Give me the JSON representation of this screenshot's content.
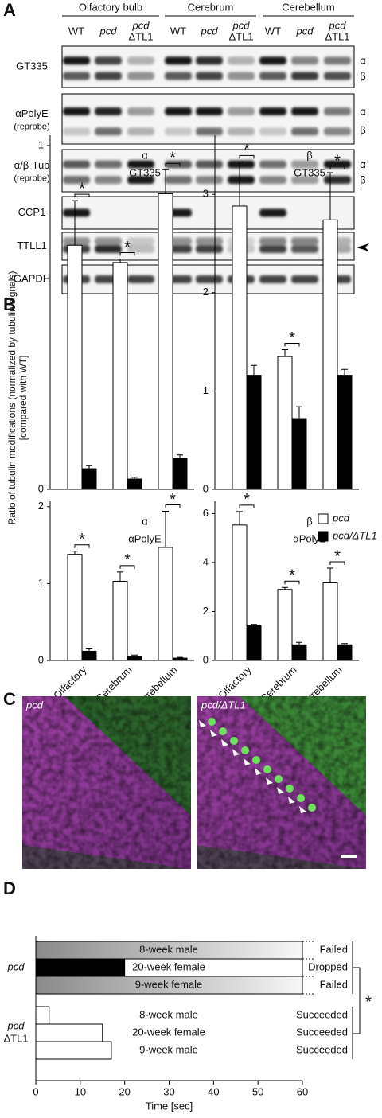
{
  "panel_a": {
    "label": "A",
    "groups": [
      "Olfactory bulb",
      "Cerebrum",
      "Cerebellum"
    ],
    "lanes": [
      [
        "WT"
      ],
      [
        "pcd"
      ],
      [
        "pcd",
        "ΔTL1"
      ],
      [
        "WT"
      ],
      [
        "pcd"
      ],
      [
        "pcd",
        "ΔTL1"
      ],
      [
        "WT"
      ],
      [
        "pcd"
      ],
      [
        "pcd",
        "ΔTL1"
      ]
    ],
    "blots": [
      {
        "label": [
          "GT335"
        ],
        "markers": [
          "α",
          "β"
        ]
      },
      {
        "label": [
          "αPolyE",
          "(reprobe)"
        ],
        "markers": [
          "α",
          "β"
        ]
      },
      {
        "label": [
          "α/β-Tub",
          "(reprobe)"
        ],
        "markers": [
          "α",
          "β"
        ]
      },
      {
        "label": [
          "CCP1"
        ]
      },
      {
        "label": [
          "TTLL1"
        ]
      },
      {
        "label": [
          "GAPDH"
        ]
      }
    ]
  },
  "panel_b": {
    "label": "B",
    "ylabel": [
      "Ratio of tubulin modifications (normalized by tubulin signals)",
      "[compared with WT]"
    ]
  },
  "panel_c": {
    "label": "C",
    "images": [
      {
        "label": "pcd"
      },
      {
        "label": "pcd/ΔTL1"
      }
    ]
  },
  "panel_d": {
    "label": "D"
  },
  "chart_data": [
    {
      "type": "bar",
      "title": [
        "α",
        "GT335"
      ],
      "categories": [
        null,
        null,
        null
      ],
      "series": [
        {
          "color": "#ffffff",
          "values": [
            0.71,
            0.66,
            0.86
          ],
          "errors": [
            0.13,
            0.01,
            0.07
          ]
        },
        {
          "color": "#000000",
          "values": [
            0.06,
            0.03,
            0.09
          ],
          "errors": [
            0.01,
            0.005,
            0.01
          ]
        }
      ],
      "ylim": [
        0,
        1.03
      ],
      "yticks": [
        0,
        1
      ],
      "annotations": [
        "*",
        "*",
        "*"
      ]
    },
    {
      "type": "bar",
      "title": [
        "β",
        "GT335"
      ],
      "categories": [
        null,
        null,
        null
      ],
      "series": [
        {
          "color": "#ffffff",
          "values": [
            2.88,
            1.35,
            2.74
          ],
          "errors": [
            0.45,
            0.07,
            0.48
          ]
        },
        {
          "color": "#000000",
          "values": [
            1.16,
            0.72,
            1.16
          ],
          "errors": [
            0.1,
            0.12,
            0.06
          ]
        }
      ],
      "ylim": [
        0,
        3.6
      ],
      "yticks": [
        0,
        1,
        2,
        3
      ],
      "annotations": [
        "*",
        "*",
        "*"
      ]
    },
    {
      "type": "bar",
      "title": [
        "α",
        "αPolyE"
      ],
      "categories": [
        "Olfactory",
        "Cerebrum",
        "Cerebellum"
      ],
      "series": [
        {
          "color": "#ffffff",
          "values": [
            1.38,
            1.03,
            1.47
          ],
          "errors": [
            0.04,
            0.12,
            0.47
          ]
        },
        {
          "color": "#000000",
          "values": [
            0.12,
            0.05,
            0.03
          ],
          "errors": [
            0.04,
            0.02,
            0.01
          ]
        }
      ],
      "ylim": [
        0,
        2.07
      ],
      "yticks": [
        0,
        1,
        2
      ],
      "annotations": [
        "*",
        "*",
        "*"
      ]
    },
    {
      "type": "bar",
      "title": [
        "β",
        "αPolyE"
      ],
      "categories": [
        "Olfactory",
        "Cerebrum",
        "Cerebellum"
      ],
      "series": [
        {
          "name": "pcd",
          "color": "#ffffff",
          "values": [
            5.53,
            2.9,
            3.17
          ],
          "errors": [
            0.55,
            0.08,
            0.6
          ]
        },
        {
          "name": "pcd/ΔTL1",
          "color": "#000000",
          "values": [
            1.42,
            0.64,
            0.64
          ],
          "errors": [
            0.05,
            0.1,
            0.05
          ]
        }
      ],
      "ylim": [
        0,
        6.5
      ],
      "yticks": [
        0,
        2,
        4,
        6
      ],
      "annotations": [
        "*",
        "*",
        "*"
      ]
    },
    {
      "type": "hbar",
      "xlabel": "Time [sec]",
      "xlim": [
        0,
        60
      ],
      "xticks": [
        0,
        10,
        20,
        30,
        40,
        50,
        60
      ],
      "groups": [
        {
          "label": [
            "pcd"
          ],
          "categories": [
            "8-week male",
            "20-week female",
            "9-week female"
          ],
          "values": [
            60,
            20,
            60
          ],
          "colors": [
            "#8a8a8a",
            "#000000",
            "#8a8a8a"
          ],
          "styles": [
            "gradient",
            "solid",
            "gradient"
          ],
          "outcomes": [
            "Failed",
            "Dropped",
            "Failed"
          ]
        },
        {
          "label": [
            "pcd",
            "ΔTL1"
          ],
          "categories": [
            "8-week male",
            "20-week female",
            "9-week male"
          ],
          "values": [
            3,
            15,
            17
          ],
          "colors": [
            "#ffffff",
            "#ffffff",
            "#ffffff"
          ],
          "styles": [
            "solid",
            "solid",
            "solid"
          ],
          "outcomes": [
            "Succeeded",
            "Succeeded",
            "Succeeded"
          ]
        }
      ],
      "annotations": [
        "*"
      ]
    }
  ]
}
